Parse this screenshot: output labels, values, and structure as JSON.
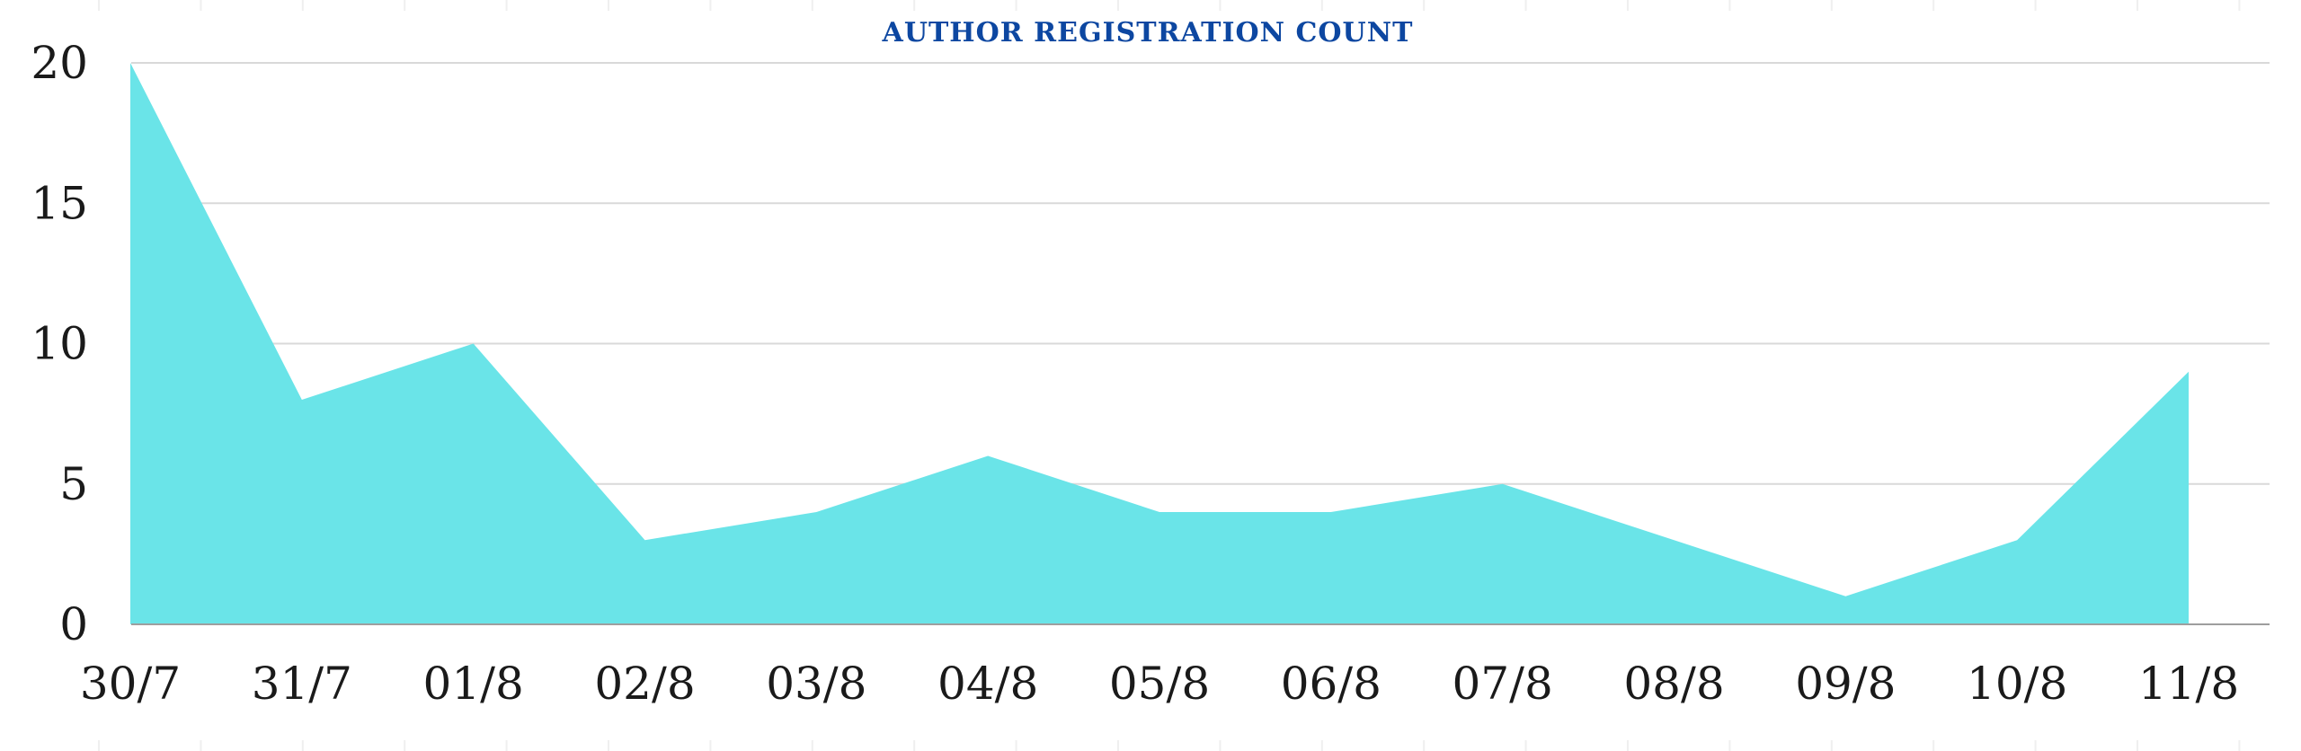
{
  "chart_data": {
    "type": "area",
    "title": "AUTHOR REGISTRATION COUNT",
    "xlabel": "",
    "ylabel": "",
    "categories": [
      "30/7",
      "31/7",
      "01/8",
      "02/8",
      "03/8",
      "04/8",
      "05/8",
      "06/8",
      "07/8",
      "08/8",
      "09/8",
      "10/8",
      "11/8"
    ],
    "series": [
      {
        "values": [
          20,
          8,
          10,
          3,
          4,
          6,
          4,
          4,
          5,
          3,
          1,
          3,
          9
        ]
      }
    ],
    "ylim": [
      0,
      20
    ],
    "yticks": [
      0,
      5,
      10,
      15,
      20
    ],
    "grid": true,
    "legend": "none",
    "colors": {
      "fill": "#6ae4e8",
      "title": "#0d47a1",
      "grid": "#d9d9d9",
      "axis": "#9e9e9e",
      "text": "#1a1a1a"
    }
  }
}
